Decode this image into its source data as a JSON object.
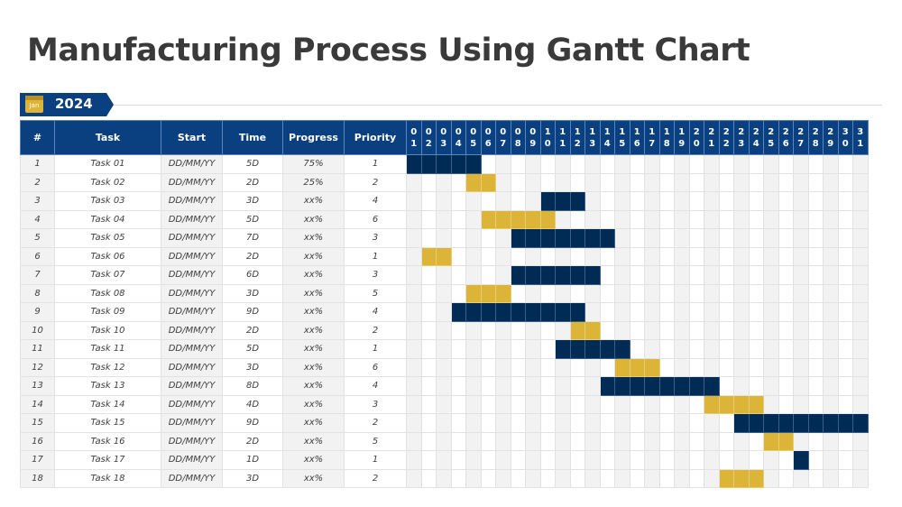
{
  "title": "Manufacturing Process Using Gantt Chart",
  "year_tag": {
    "month": "Jan",
    "year": "2024"
  },
  "colors": {
    "header": "#0a4080",
    "navy_bar": "#002b55",
    "gold_bar": "#dcb437"
  },
  "chart_data": {
    "type": "table",
    "columns": [
      "#",
      "Task",
      "Start",
      "Time",
      "Progress",
      "Priority"
    ],
    "days": [
      "01",
      "02",
      "03",
      "04",
      "05",
      "06",
      "07",
      "08",
      "09",
      "10",
      "11",
      "12",
      "13",
      "14",
      "15",
      "16",
      "17",
      "18",
      "19",
      "20",
      "21",
      "22",
      "23",
      "24",
      "25",
      "26",
      "27",
      "28",
      "29",
      "30",
      "31"
    ],
    "tasks": [
      {
        "n": "1",
        "task": "Task 01",
        "start": "DD/MM/YY",
        "time": "5D",
        "progress": "75%",
        "priority": "1",
        "bar_start": 1,
        "bar_end": 5,
        "color": "navy"
      },
      {
        "n": "2",
        "task": "Task 02",
        "start": "DD/MM/YY",
        "time": "2D",
        "progress": "25%",
        "priority": "2",
        "bar_start": 5,
        "bar_end": 6,
        "color": "gold"
      },
      {
        "n": "3",
        "task": "Task 03",
        "start": "DD/MM/YY",
        "time": "3D",
        "progress": "xx%",
        "priority": "4",
        "bar_start": 10,
        "bar_end": 12,
        "color": "navy"
      },
      {
        "n": "4",
        "task": "Task 04",
        "start": "DD/MM/YY",
        "time": "5D",
        "progress": "xx%",
        "priority": "6",
        "bar_start": 6,
        "bar_end": 10,
        "color": "gold"
      },
      {
        "n": "5",
        "task": "Task 05",
        "start": "DD/MM/YY",
        "time": "7D",
        "progress": "xx%",
        "priority": "3",
        "bar_start": 8,
        "bar_end": 14,
        "color": "navy"
      },
      {
        "n": "6",
        "task": "Task 06",
        "start": "DD/MM/YY",
        "time": "2D",
        "progress": "xx%",
        "priority": "1",
        "bar_start": 2,
        "bar_end": 3,
        "color": "gold"
      },
      {
        "n": "7",
        "task": "Task 07",
        "start": "DD/MM/YY",
        "time": "6D",
        "progress": "xx%",
        "priority": "3",
        "bar_start": 8,
        "bar_end": 13,
        "color": "navy"
      },
      {
        "n": "8",
        "task": "Task 08",
        "start": "DD/MM/YY",
        "time": "3D",
        "progress": "xx%",
        "priority": "5",
        "bar_start": 5,
        "bar_end": 7,
        "color": "gold"
      },
      {
        "n": "9",
        "task": "Task 09",
        "start": "DD/MM/YY",
        "time": "9D",
        "progress": "xx%",
        "priority": "4",
        "bar_start": 4,
        "bar_end": 12,
        "color": "navy"
      },
      {
        "n": "10",
        "task": "Task 10",
        "start": "DD/MM/YY",
        "time": "2D",
        "progress": "xx%",
        "priority": "2",
        "bar_start": 12,
        "bar_end": 13,
        "color": "gold"
      },
      {
        "n": "11",
        "task": "Task 11",
        "start": "DD/MM/YY",
        "time": "5D",
        "progress": "xx%",
        "priority": "1",
        "bar_start": 11,
        "bar_end": 15,
        "color": "navy"
      },
      {
        "n": "12",
        "task": "Task 12",
        "start": "DD/MM/YY",
        "time": "3D",
        "progress": "xx%",
        "priority": "6",
        "bar_start": 15,
        "bar_end": 17,
        "color": "gold"
      },
      {
        "n": "13",
        "task": "Task 13",
        "start": "DD/MM/YY",
        "time": "8D",
        "progress": "xx%",
        "priority": "4",
        "bar_start": 14,
        "bar_end": 21,
        "color": "navy"
      },
      {
        "n": "14",
        "task": "Task 14",
        "start": "DD/MM/YY",
        "time": "4D",
        "progress": "xx%",
        "priority": "3",
        "bar_start": 21,
        "bar_end": 24,
        "color": "gold"
      },
      {
        "n": "15",
        "task": "Task 15",
        "start": "DD/MM/YY",
        "time": "9D",
        "progress": "xx%",
        "priority": "2",
        "bar_start": 23,
        "bar_end": 31,
        "color": "navy"
      },
      {
        "n": "16",
        "task": "Task 16",
        "start": "DD/MM/YY",
        "time": "2D",
        "progress": "xx%",
        "priority": "5",
        "bar_start": 25,
        "bar_end": 26,
        "color": "gold"
      },
      {
        "n": "17",
        "task": "Task 17",
        "start": "DD/MM/YY",
        "time": "1D",
        "progress": "xx%",
        "priority": "1",
        "bar_start": 27,
        "bar_end": 27,
        "color": "navy"
      },
      {
        "n": "18",
        "task": "Task 18",
        "start": "DD/MM/YY",
        "time": "3D",
        "progress": "xx%",
        "priority": "2",
        "bar_start": 22,
        "bar_end": 24,
        "color": "gold"
      }
    ]
  }
}
